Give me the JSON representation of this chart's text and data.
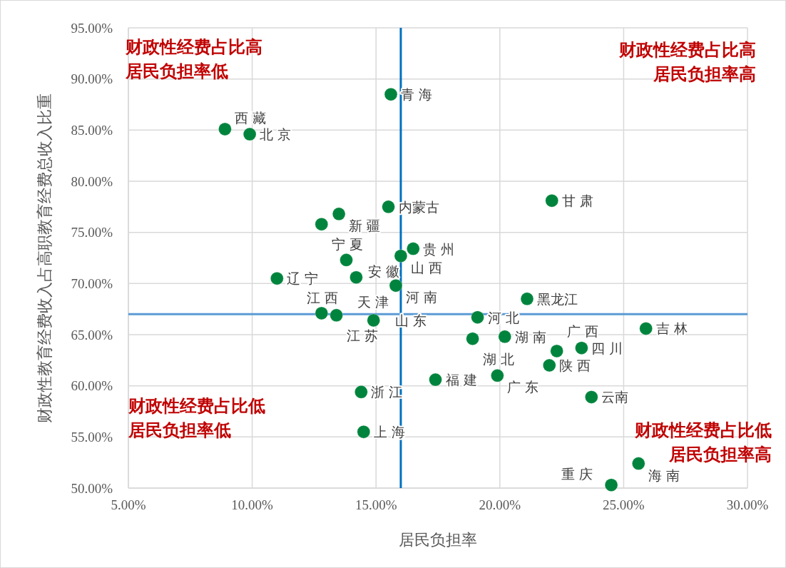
{
  "chart_data": {
    "type": "scatter",
    "xlabel": "居民负担率",
    "ylabel": "财政性教育经费收入占高职教育经费总收入比重",
    "x": [
      15.6,
      8.9,
      9.9,
      22.1,
      15.5,
      13.5,
      12.8,
      16.5,
      16.0,
      13.8,
      11.0,
      14.2,
      15.8,
      21.1,
      12.8,
      13.4,
      14.9,
      19.1,
      25.9,
      18.9,
      20.2,
      23.3,
      22.3,
      22.0,
      17.4,
      19.9,
      23.7,
      14.4,
      14.5,
      25.6,
      24.5
    ],
    "series": [
      {
        "color": "#00843d",
        "values": [
          88.5,
          85.1,
          84.6,
          78.1,
          77.5,
          76.8,
          75.8,
          73.4,
          72.7,
          72.3,
          70.5,
          70.6,
          69.8,
          68.5,
          67.1,
          66.9,
          66.4,
          66.7,
          65.6,
          64.6,
          64.8,
          63.7,
          63.4,
          62.0,
          60.6,
          61.0,
          58.9,
          59.4,
          55.5,
          52.4,
          50.3
        ]
      }
    ],
    "marker": "circle",
    "grid": true,
    "xlim": [
      5,
      30
    ],
    "xticks": [
      {
        "value": 5,
        "label": "5.00%"
      },
      {
        "value": 10,
        "label": "10.00%"
      },
      {
        "value": 15,
        "label": "15.00%"
      },
      {
        "value": 20,
        "label": "20.00%"
      },
      {
        "value": 25,
        "label": "25.00%"
      },
      {
        "value": 30,
        "label": "30.00%"
      }
    ],
    "ylim": [
      50,
      95
    ],
    "yticks": [
      {
        "value": 50,
        "label": "50.00%"
      },
      {
        "value": 55,
        "label": "55.00%"
      },
      {
        "value": 60,
        "label": "60.00%"
      },
      {
        "value": 65,
        "label": "65.00%"
      },
      {
        "value": 70,
        "label": "70.00%"
      },
      {
        "value": 75,
        "label": "75.00%"
      },
      {
        "value": 80,
        "label": "80.00%"
      },
      {
        "value": 85,
        "label": "85.00%"
      },
      {
        "value": 90,
        "label": "90.00%"
      },
      {
        "value": 95,
        "label": "95.00%"
      }
    ],
    "ref_lines": [
      {
        "axis": "x",
        "value": 16,
        "color": "#0070c0"
      },
      {
        "axis": "y",
        "value": 67,
        "color": "#5b9bd5"
      }
    ],
    "annotations": [
      "财政性经费占比高",
      "居民负担率低",
      "财政性经费占比高",
      "居民负担率高",
      "财政性经费占比低",
      "居民负担率低",
      "财政性经费占比低",
      "居民负担率高",
      {
        "text": "青 海",
        "x": 15.6,
        "y": 88.5
      },
      {
        "text": "西 藏",
        "x": 8.9,
        "y": 85.1
      },
      {
        "text": "北 京",
        "x": 9.9,
        "y": 84.6
      },
      {
        "text": "甘 肃",
        "x": 22.1,
        "y": 78.1
      },
      {
        "text": "内蒙古",
        "x": 15.5,
        "y": 77.5
      },
      {
        "text": "新 疆",
        "x": 13.5,
        "y": 76.8
      },
      {
        "text": "宁 夏",
        "x": 12.8,
        "y": 75.8
      },
      {
        "text": "贵 州",
        "x": 16.5,
        "y": 73.4
      },
      {
        "text": "山 西",
        "x": 16.0,
        "y": 72.7
      },
      {
        "text": "安 徽",
        "x": 13.8,
        "y": 72.3
      },
      {
        "text": "辽 宁",
        "x": 11.0,
        "y": 70.5
      },
      {
        "text": "江 西",
        "x": 14.2,
        "y": 70.6
      },
      {
        "text": "河 南",
        "x": 15.8,
        "y": 69.8
      },
      {
        "text": "黑龙江",
        "x": 21.1,
        "y": 68.5
      },
      {
        "text": "天 津",
        "x": 12.8,
        "y": 67.1
      },
      {
        "text": "江 苏",
        "x": 13.4,
        "y": 66.9
      },
      {
        "text": "山 东",
        "x": 14.9,
        "y": 66.4
      },
      {
        "text": "河 北",
        "x": 19.1,
        "y": 66.7
      },
      {
        "text": "吉 林",
        "x": 25.9,
        "y": 65.6
      },
      {
        "text": "湖 北",
        "x": 18.9,
        "y": 64.6
      },
      {
        "text": "湖 南",
        "x": 20.2,
        "y": 64.8
      },
      {
        "text": "四 川",
        "x": 23.3,
        "y": 63.7
      },
      {
        "text": "广 西",
        "x": 22.3,
        "y": 63.4
      },
      {
        "text": "陕 西",
        "x": 22.0,
        "y": 62.0
      },
      {
        "text": "福 建",
        "x": 17.4,
        "y": 60.6
      },
      {
        "text": "广 东",
        "x": 19.9,
        "y": 61.0
      },
      {
        "text": "云南",
        "x": 23.7,
        "y": 58.9
      },
      {
        "text": "浙 江",
        "x": 14.4,
        "y": 59.4
      },
      {
        "text": "上 海",
        "x": 14.5,
        "y": 55.5
      },
      {
        "text": "海 南",
        "x": 25.6,
        "y": 52.4
      },
      {
        "text": "重 庆",
        "x": 24.5,
        "y": 50.3
      }
    ]
  }
}
